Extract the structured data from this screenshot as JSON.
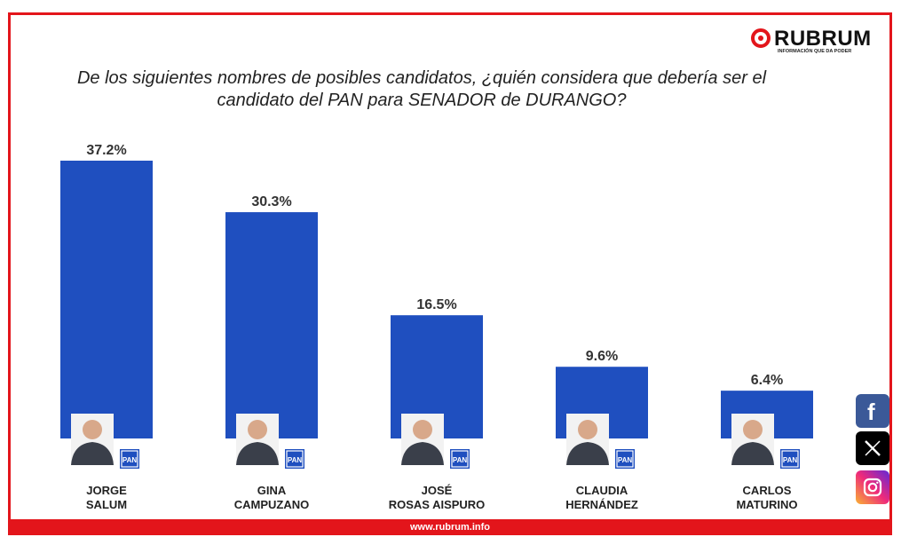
{
  "brand": {
    "name": "RUBRUM",
    "tagline": "INFORMACIÓN QUE DA PODER",
    "website": "www.rubrum.info",
    "accent_color": "#e3151b"
  },
  "chart_data": {
    "type": "bar",
    "title": "De los siguientes nombres de posibles candidatos, ¿quién considera que debería ser el candidato del PAN para SENADOR de DURANGO?",
    "categories": [
      [
        "JORGE",
        "SALUM"
      ],
      [
        "GINA",
        "CAMPUZANO"
      ],
      [
        "JOSÉ",
        "ROSAS AISPURO"
      ],
      [
        "CLAUDIA",
        "HERNÁNDEZ"
      ],
      [
        "CARLOS",
        "MATURINO"
      ]
    ],
    "values": [
      37.2,
      30.3,
      16.5,
      9.6,
      6.4
    ],
    "value_labels": [
      "37.2%",
      "30.3%",
      "16.5%",
      "9.6%",
      "6.4%"
    ],
    "ylim": [
      0,
      37.2
    ],
    "bar_color": "#1f4fbf",
    "party_badge": "PAN",
    "grid": false,
    "legend": "none"
  },
  "social": [
    "facebook-icon",
    "x-icon",
    "instagram-icon"
  ]
}
